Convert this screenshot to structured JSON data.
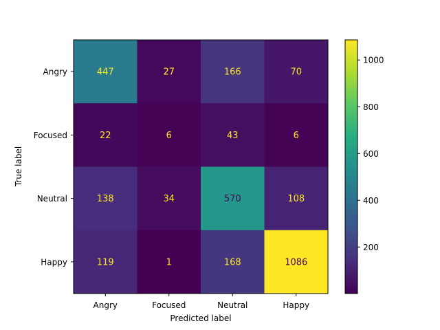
{
  "chart_data": {
    "type": "heatmap",
    "title": "",
    "xlabel": "Predicted label",
    "ylabel": "True label",
    "x_categories": [
      "Angry",
      "Focused",
      "Neutral",
      "Happy"
    ],
    "y_categories": [
      "Angry",
      "Focused",
      "Neutral",
      "Happy"
    ],
    "values": [
      [
        447,
        27,
        166,
        70
      ],
      [
        22,
        6,
        43,
        6
      ],
      [
        138,
        34,
        570,
        108
      ],
      [
        119,
        1,
        168,
        1086
      ]
    ],
    "colormap": "viridis",
    "color_range": [
      1,
      1086
    ],
    "colorbar_ticks": [
      "200",
      "400",
      "600",
      "800",
      "1000"
    ],
    "colorbar_tick_values": [
      200,
      400,
      600,
      800,
      1000
    ],
    "label_color_light": "#fde725",
    "label_color_dark": "#440154",
    "grid": false
  }
}
